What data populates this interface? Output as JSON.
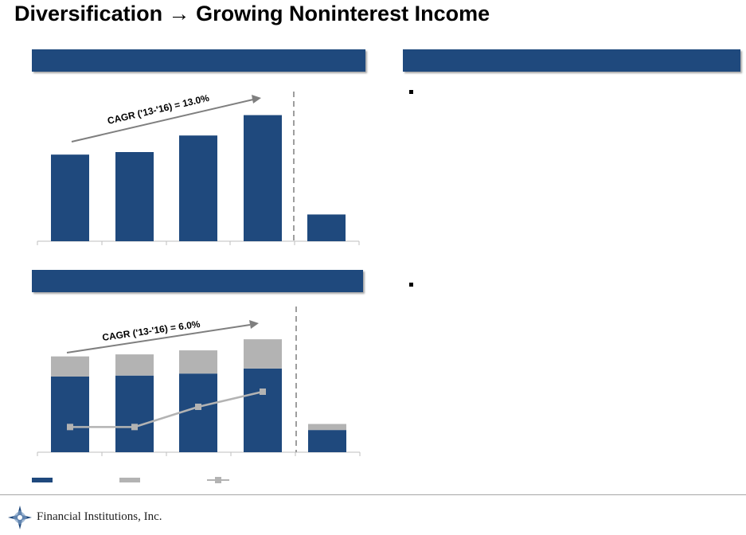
{
  "page": {
    "title": "Diversification → Growing Noninterest Income",
    "company": "Financial Institutions, Inc.",
    "colors": {
      "header": "#1f497d",
      "bar_dark": "#1f497d",
      "bar_gray": "#b3b3b3",
      "line": "#b3b3b3",
      "trend": "#7f7f7f"
    }
  },
  "chart_data": [
    {
      "type": "bar",
      "annotation": "CAGR ('13-'16) = 13.0%",
      "categories": [
        "",
        "",
        "",
        "",
        ""
      ],
      "values": [
        68,
        70,
        83,
        99,
        21
      ],
      "ylim": [
        0,
        100
      ],
      "grid": false
    },
    {
      "type": "bar",
      "stacked": true,
      "annotation": "CAGR ('13-'16) = 6.0%",
      "categories": [
        "",
        "",
        "",
        "",
        ""
      ],
      "series": [
        {
          "values": [
            75,
            76,
            78,
            83,
            22
          ]
        },
        {
          "values": [
            20,
            21,
            23,
            29,
            6
          ]
        }
      ],
      "line_series": {
        "values": [
          25,
          25,
          45,
          60
        ]
      },
      "ylim": [
        0,
        150
      ],
      "grid": false
    }
  ]
}
